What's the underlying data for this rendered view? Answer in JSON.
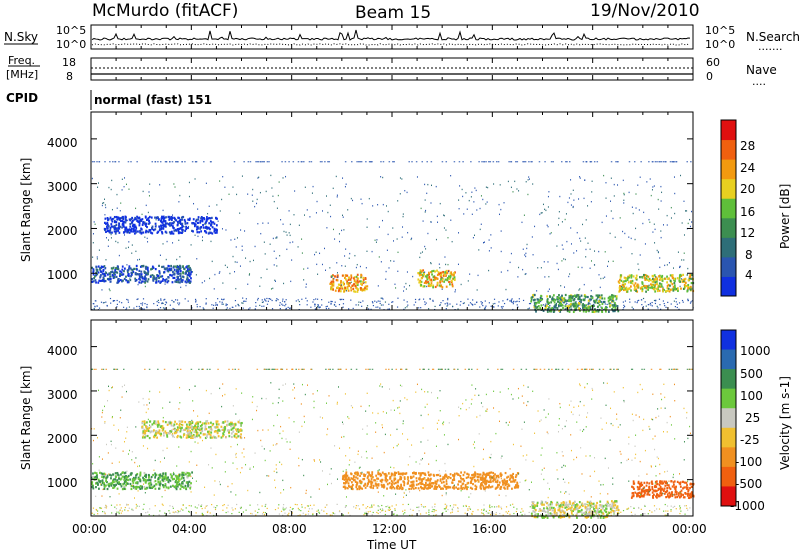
{
  "header": {
    "station": "McMurdo (fitACF)",
    "beam": "Beam 15",
    "date": "19/Nov/2010"
  },
  "noise_panel": {
    "left_label": "N.Sky",
    "right_label": "N.Search",
    "left_ticks": [
      "10^5",
      "10^0"
    ],
    "right_ticks": [
      "10^5",
      "10^0"
    ]
  },
  "freq_panel": {
    "left_label_1": "Freq.",
    "left_label_2": "[MHz]",
    "right_label": "Nave",
    "left_ticks": [
      "18",
      "8"
    ],
    "right_ticks": [
      "60",
      "0"
    ]
  },
  "cpid": {
    "label": "CPID",
    "value": "normal (fast) 151"
  },
  "time_axis": {
    "label": "Time UT",
    "ticks": [
      "00:00",
      "04:00",
      "08:00",
      "12:00",
      "16:00",
      "20:00",
      "00:00"
    ]
  },
  "colors": {
    "power_scale": [
      "#1030e0",
      "#2a55b0",
      "#2e6e78",
      "#3c8e50",
      "#5fbf3a",
      "#e8d020",
      "#f29a10",
      "#f06010",
      "#e01010"
    ],
    "velocity_scale": [
      "#1030e0",
      "#2a6ab0",
      "#3b8e50",
      "#6cc83c",
      "#c8c8c0",
      "#f0c030",
      "#f09020",
      "#f06010",
      "#e01010"
    ]
  },
  "chart_data": [
    {
      "type": "heatmap",
      "name_panel": "power",
      "ylabel": "Slant Range [km]",
      "xlabel": "",
      "yticks": [
        "1000",
        "2000",
        "3000",
        "4000"
      ],
      "ylim": [
        180,
        4600
      ],
      "xlim": [
        "00:00",
        "24:00"
      ],
      "colorbar": {
        "label": "Power [dB]",
        "ticks": [
          "4",
          "8",
          "12",
          "16",
          "20",
          "24",
          "28"
        ]
      },
      "echo_regions": [
        {
          "t_start": 0.0,
          "t_end": 4.0,
          "range_km": 1000,
          "value_db": 10
        },
        {
          "t_start": 0.5,
          "t_end": 5.0,
          "range_km": 2100,
          "value_db": 4
        },
        {
          "t_start": 9.5,
          "t_end": 11.0,
          "range_km": 800,
          "value_db": 28
        },
        {
          "t_start": 13.0,
          "t_end": 14.5,
          "range_km": 900,
          "value_db": 26
        },
        {
          "t_start": 17.5,
          "t_end": 21.0,
          "range_km": 350,
          "value_db": 18
        },
        {
          "t_start": 21.0,
          "t_end": 24.0,
          "range_km": 800,
          "value_db": 24
        }
      ]
    },
    {
      "type": "heatmap",
      "name_panel": "velocity",
      "ylabel": "Slant Range [km]",
      "xlabel": "Time UT",
      "yticks": [
        "1000",
        "2000",
        "3000",
        "4000"
      ],
      "ylim": [
        180,
        4600
      ],
      "xlim": [
        "00:00",
        "24:00"
      ],
      "colorbar": {
        "label": "Velocity [m s-1]",
        "ticks": [
          "1000",
          "500",
          "100",
          "25",
          "-25",
          "-100",
          "-500",
          "-1000"
        ]
      },
      "echo_regions": [
        {
          "t_start": 0.0,
          "t_end": 4.0,
          "range_km": 1000,
          "value_ms": 100
        },
        {
          "t_start": 2.0,
          "t_end": 6.0,
          "range_km": 2150,
          "value_ms": 0
        },
        {
          "t_start": 10.0,
          "t_end": 17.0,
          "range_km": 1000,
          "value_ms": -300
        },
        {
          "t_start": 17.5,
          "t_end": 21.0,
          "range_km": 350,
          "value_ms": 0
        },
        {
          "t_start": 21.5,
          "t_end": 24.0,
          "range_km": 800,
          "value_ms": -700
        }
      ]
    }
  ]
}
